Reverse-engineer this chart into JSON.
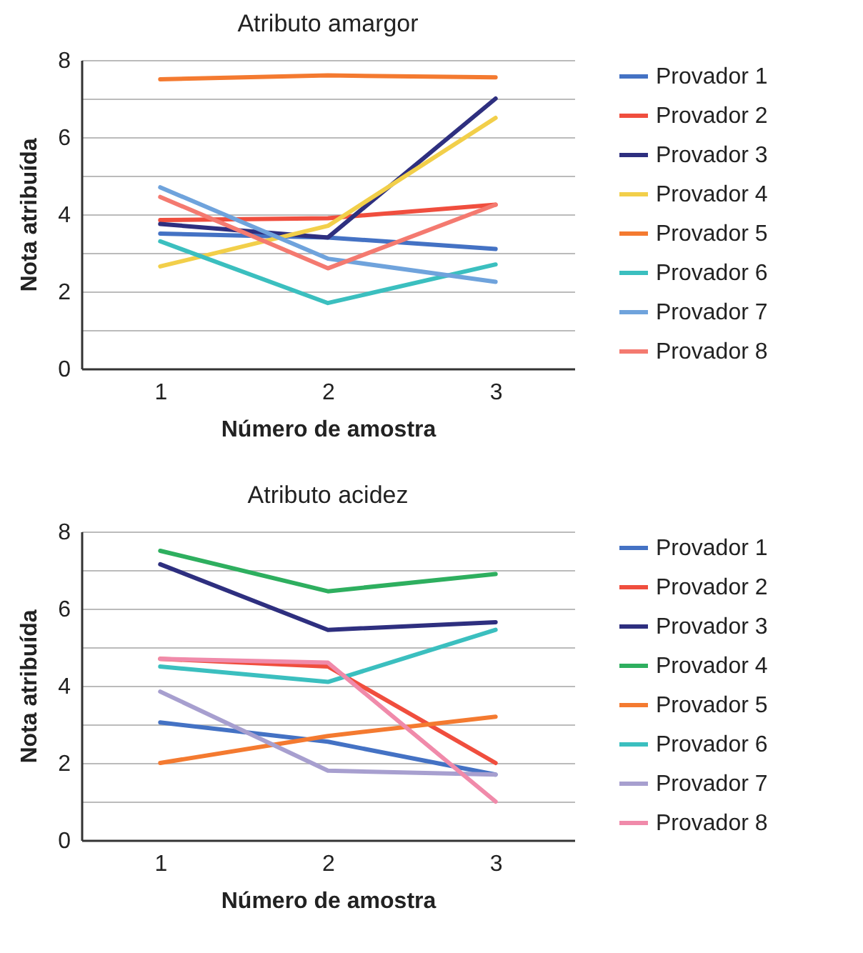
{
  "chart_data": [
    {
      "type": "line",
      "title": "Atributo amargor",
      "xlabel": "Número de amostra",
      "ylabel": "Nota atribuída",
      "categories": [
        "1",
        "2",
        "3"
      ],
      "ylim": [
        0,
        8
      ],
      "yticks": [
        0,
        {
          "value": 1,
          "label": null
        },
        2,
        {
          "value": 3,
          "label": null
        },
        4,
        {
          "value": 5,
          "label": null
        },
        6,
        {
          "value": 7,
          "label": null
        },
        8
      ],
      "grid": "y",
      "legend": "right",
      "series": [
        {
          "name": "Provador 1",
          "color": "#4472c4",
          "values": [
            3.5,
            3.4,
            3.1
          ]
        },
        {
          "name": "Provador 2",
          "color": "#f04e3e",
          "values": [
            3.85,
            3.9,
            4.25
          ]
        },
        {
          "name": "Provador 3",
          "color": "#2e2f7f",
          "values": [
            3.75,
            3.4,
            7.0
          ]
        },
        {
          "name": "Provador 4",
          "color": "#f2cf4a",
          "values": [
            2.65,
            3.7,
            6.5
          ]
        },
        {
          "name": "Provador 5",
          "color": "#f47a30",
          "values": [
            7.5,
            7.6,
            7.55
          ]
        },
        {
          "name": "Provador 6",
          "color": "#3bbfbf",
          "values": [
            3.3,
            1.7,
            2.7
          ]
        },
        {
          "name": "Provador 7",
          "color": "#6fa3dc",
          "values": [
            4.7,
            2.85,
            2.25
          ]
        },
        {
          "name": "Provador 8",
          "color": "#f47a70",
          "values": [
            4.45,
            2.6,
            4.25
          ]
        }
      ]
    },
    {
      "type": "line",
      "title": "Atributo acidez",
      "xlabel": "Número de amostra",
      "ylabel": "Nota atribuída",
      "categories": [
        "1",
        "2",
        "3"
      ],
      "ylim": [
        0,
        8
      ],
      "yticks": [
        0,
        {
          "value": 1,
          "label": null
        },
        2,
        {
          "value": 3,
          "label": null
        },
        4,
        {
          "value": 5,
          "label": null
        },
        6,
        {
          "value": 7,
          "label": null
        },
        8
      ],
      "grid": "y",
      "legend": "right",
      "series": [
        {
          "name": "Provador 1",
          "color": "#4472c4",
          "values": [
            3.05,
            2.55,
            1.7
          ]
        },
        {
          "name": "Provador 2",
          "color": "#f04e3e",
          "values": [
            4.7,
            4.5,
            2.0
          ]
        },
        {
          "name": "Provador 3",
          "color": "#2e2f7f",
          "values": [
            7.15,
            5.45,
            5.65
          ]
        },
        {
          "name": "Provador 4",
          "color": "#2eaf5f",
          "values": [
            7.5,
            6.45,
            6.9
          ]
        },
        {
          "name": "Provador 5",
          "color": "#f47a30",
          "values": [
            2.0,
            2.7,
            3.2
          ]
        },
        {
          "name": "Provador 6",
          "color": "#3bbfbf",
          "values": [
            4.5,
            4.1,
            5.45
          ]
        },
        {
          "name": "Provador 7",
          "color": "#a79fcf",
          "values": [
            3.85,
            1.8,
            1.7
          ]
        },
        {
          "name": "Provador 8",
          "color": "#f08aaa",
          "values": [
            4.7,
            4.6,
            1.0
          ]
        }
      ]
    }
  ]
}
